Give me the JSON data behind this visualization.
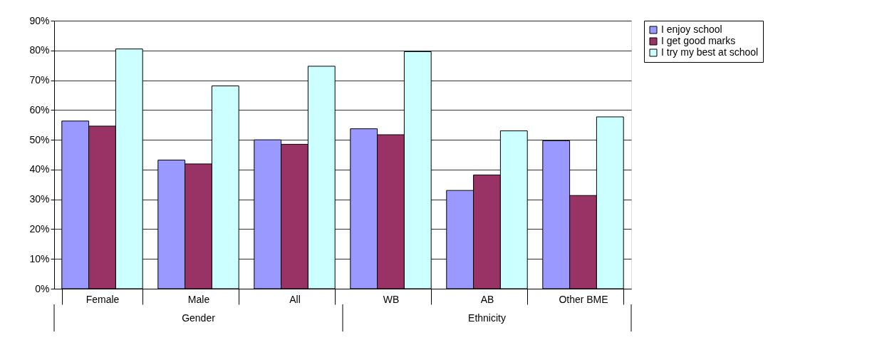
{
  "chart_data": {
    "type": "bar",
    "categories": [
      "Female",
      "Male",
      "All",
      "WB",
      "AB",
      "Other BME"
    ],
    "series": [
      {
        "name": "I enjoy school",
        "color": "#9999ff",
        "values": [
          56.3,
          43.2,
          50.0,
          53.7,
          33.0,
          49.7
        ]
      },
      {
        "name": "I get good marks",
        "color": "#993366",
        "values": [
          54.6,
          41.9,
          48.5,
          51.7,
          38.2,
          31.3
        ]
      },
      {
        "name": "I try my best at school",
        "color": "#ccffff",
        "values": [
          80.5,
          68.1,
          74.7,
          79.6,
          53.0,
          57.7
        ]
      }
    ],
    "ylim": [
      0,
      90
    ],
    "yticks": [
      {
        "value": 0,
        "label": "0%"
      },
      {
        "value": 10,
        "label": "10%"
      },
      {
        "value": 20,
        "label": "20%"
      },
      {
        "value": 30,
        "label": "30%"
      },
      {
        "value": 40,
        "label": "40%"
      },
      {
        "value": 50,
        "label": "50%"
      },
      {
        "value": 60,
        "label": "60%"
      },
      {
        "value": 70,
        "label": "70%"
      },
      {
        "value": 80,
        "label": "80%"
      },
      {
        "value": 90,
        "label": "90%"
      }
    ],
    "annotations": [
      "Gender",
      "Ethnicity"
    ],
    "grid": "y",
    "legend": "right"
  }
}
